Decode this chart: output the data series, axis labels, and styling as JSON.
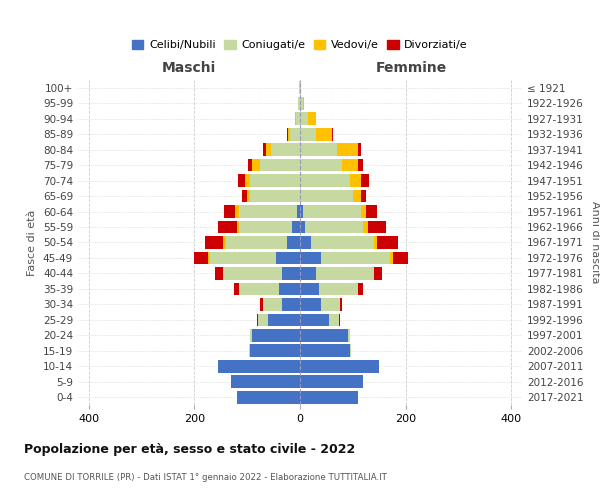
{
  "age_groups_bottom_to_top": [
    "0-4",
    "5-9",
    "10-14",
    "15-19",
    "20-24",
    "25-29",
    "30-34",
    "35-39",
    "40-44",
    "45-49",
    "50-54",
    "55-59",
    "60-64",
    "65-69",
    "70-74",
    "75-79",
    "80-84",
    "85-89",
    "90-94",
    "95-99",
    "100+"
  ],
  "birth_years_bottom_to_top": [
    "2017-2021",
    "2012-2016",
    "2007-2011",
    "2002-2006",
    "1997-2001",
    "1992-1996",
    "1987-1991",
    "1982-1986",
    "1977-1981",
    "1972-1976",
    "1967-1971",
    "1962-1966",
    "1957-1961",
    "1952-1956",
    "1947-1951",
    "1942-1946",
    "1937-1941",
    "1932-1936",
    "1927-1931",
    "1922-1926",
    "≤ 1921"
  ],
  "males_celibi": [
    120,
    130,
    155,
    95,
    90,
    60,
    35,
    40,
    35,
    45,
    25,
    15,
    5,
    0,
    0,
    0,
    0,
    0,
    0,
    0,
    0
  ],
  "males_coniugati": [
    0,
    0,
    0,
    2,
    5,
    20,
    35,
    75,
    110,
    125,
    115,
    100,
    110,
    95,
    95,
    75,
    55,
    18,
    8,
    3,
    1
  ],
  "males_vedovi": [
    0,
    0,
    0,
    0,
    0,
    0,
    0,
    0,
    0,
    5,
    5,
    5,
    8,
    5,
    10,
    15,
    10,
    5,
    2,
    0,
    0
  ],
  "males_divorziati": [
    0,
    0,
    0,
    0,
    0,
    2,
    5,
    10,
    15,
    25,
    35,
    35,
    20,
    10,
    12,
    8,
    5,
    2,
    0,
    0,
    0
  ],
  "females_nubili": [
    110,
    120,
    150,
    95,
    90,
    55,
    40,
    35,
    30,
    40,
    20,
    10,
    5,
    0,
    0,
    0,
    0,
    0,
    0,
    0,
    0
  ],
  "females_coniugate": [
    0,
    0,
    0,
    2,
    5,
    18,
    35,
    75,
    110,
    130,
    120,
    110,
    110,
    100,
    95,
    80,
    70,
    30,
    15,
    5,
    1
  ],
  "females_vedove": [
    0,
    0,
    0,
    0,
    0,
    0,
    0,
    0,
    0,
    5,
    5,
    8,
    10,
    15,
    20,
    30,
    40,
    30,
    15,
    3,
    0
  ],
  "females_divorziate": [
    0,
    0,
    0,
    0,
    0,
    2,
    5,
    10,
    15,
    30,
    40,
    35,
    20,
    10,
    15,
    10,
    5,
    2,
    0,
    0,
    0
  ],
  "color_celibi": "#4472c4",
  "color_coniugati": "#c5d9a0",
  "color_vedovi": "#ffc000",
  "color_divorziati": "#cc0000",
  "xlim": 420,
  "title": "Popolazione per età, sesso e stato civile - 2022",
  "subtitle": "COMUNE DI TORRILE (PR) - Dati ISTAT 1° gennaio 2022 - Elaborazione TUTTITALIA.IT",
  "ylabel_left": "Fasce di età",
  "ylabel_right": "Anni di nascita",
  "xlabel_left": "Maschi",
  "xlabel_right": "Femmine",
  "background_color": "#ffffff",
  "grid_color": "#cccccc"
}
